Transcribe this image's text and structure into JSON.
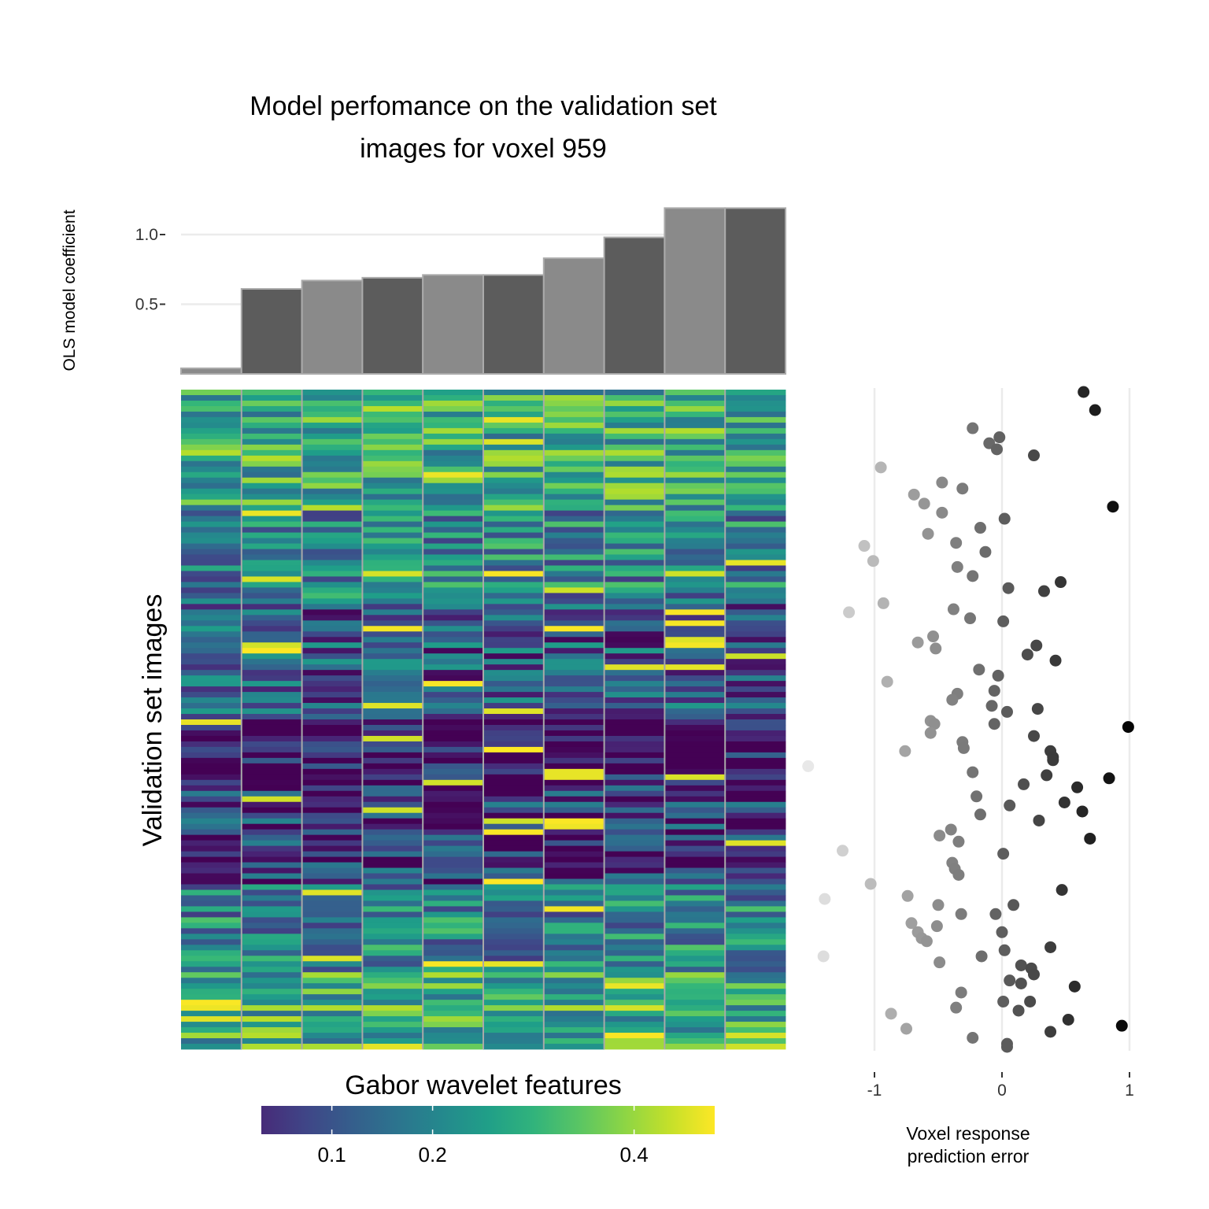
{
  "chart_data": [
    {
      "type": "bar",
      "title": "Model perfomance on the validation set images for voxel 959",
      "title_lines": [
        "Model perfomance on the validation set",
        "images for voxel 959"
      ],
      "ylabel": "OLS model coefficient",
      "xlabel": "",
      "ylim": [
        0,
        1.22
      ],
      "yticks": [
        0.5,
        1.0
      ],
      "ytick_labels": [
        "0.5",
        "1.0"
      ],
      "grid": "horizontal",
      "values": [
        0.04,
        0.61,
        0.67,
        0.69,
        0.71,
        0.71,
        0.83,
        0.98,
        1.19,
        1.19
      ],
      "bar_colors": [
        "#8a8a8a",
        "#5c5c5c",
        "#8a8a8a",
        "#5c5c5c",
        "#8a8a8a",
        "#5c5c5c",
        "#8a8a8a",
        "#5c5c5c",
        "#8a8a8a",
        "#5c5c5c"
      ]
    },
    {
      "type": "heatmap",
      "xlabel": "Gabor wavelet features",
      "ylabel": "Validation set images",
      "n_columns": 10,
      "n_rows": 120,
      "colorscale": "viridis",
      "colorbar": {
        "range": [
          0.03,
          0.48
        ],
        "ticks": [
          0.1,
          0.2,
          0.4
        ],
        "tick_labels": [
          "0.1",
          "0.2",
          "0.4"
        ]
      }
    },
    {
      "type": "scatter",
      "xlabel_lines": [
        "Voxel response",
        "prediction error"
      ],
      "xlim": [
        -1.55,
        1.05
      ],
      "xticks": [
        -1,
        0,
        1
      ],
      "xtick_labels": [
        "-1",
        "0",
        "1"
      ],
      "grid": "vertical",
      "color_scale": "light grey (negative error) to black (positive error)",
      "x": [
        0.64,
        0.73,
        -0.23,
        -0.02,
        -0.1,
        -0.04,
        0.25,
        -0.95,
        -0.47,
        -0.31,
        -0.69,
        -0.61,
        0.87,
        -0.47,
        0.02,
        -0.17,
        -0.58,
        -0.36,
        -1.08,
        -0.13,
        -1.01,
        -0.35,
        -0.23,
        0.46,
        0.05,
        0.33,
        -0.93,
        -0.38,
        -1.2,
        -0.25,
        0.01,
        -0.54,
        -0.66,
        0.27,
        -0.52,
        0.2,
        0.42,
        -0.18,
        -0.03,
        -0.9,
        -0.06,
        -0.35,
        -0.39,
        -0.08,
        0.28,
        0.04,
        -0.56,
        -0.53,
        -0.06,
        0.99,
        -0.56,
        0.25,
        -0.31,
        -0.3,
        -0.76,
        0.38,
        0.4,
        0.4,
        -1.52,
        -0.23,
        0.35,
        0.84,
        0.17,
        0.59,
        -0.2,
        0.49,
        0.06,
        0.63,
        -0.17,
        0.29,
        -0.4,
        -0.49,
        0.69,
        -0.34,
        -1.25,
        0.01,
        -0.39,
        -0.37,
        -0.34,
        -1.03,
        0.47,
        -0.74,
        -1.39,
        -0.5,
        0.09,
        -0.32,
        -0.05,
        -0.71,
        -0.51,
        0.0,
        -0.66,
        -0.63,
        -0.59,
        0.38,
        0.02,
        -1.4,
        -0.16,
        -0.49,
        0.15,
        0.23,
        0.25,
        0.06,
        0.15,
        0.57,
        -0.32,
        0.01,
        0.22,
        -0.36,
        0.13,
        -0.87,
        0.52,
        0.94,
        -0.75,
        0.38,
        -0.23,
        0.04,
        0.04
      ],
      "y": [
        0.0,
        0.6,
        1.2,
        1.5,
        1.7,
        1.9,
        2.1,
        2.5,
        3.0,
        3.2,
        3.4,
        3.7,
        3.8,
        4.0,
        4.2,
        4.5,
        4.7,
        5.0,
        5.1,
        5.3,
        5.6,
        5.8,
        6.1,
        6.3,
        6.5,
        6.6,
        7.0,
        7.2,
        7.3,
        7.5,
        7.6,
        8.1,
        8.3,
        8.4,
        8.5,
        8.7,
        8.9,
        9.2,
        9.4,
        9.6,
        9.9,
        10.0,
        10.2,
        10.4,
        10.5,
        10.6,
        10.9,
        11.0,
        11.0,
        11.1,
        11.3,
        11.4,
        11.6,
        11.8,
        11.9,
        11.9,
        12.1,
        12.2,
        12.4,
        12.6,
        12.7,
        12.8,
        13.0,
        13.1,
        13.4,
        13.6,
        13.7,
        13.9,
        14.0,
        14.2,
        14.5,
        14.7,
        14.8,
        14.9,
        15.2,
        15.3,
        15.6,
        15.8,
        16.0,
        16.3,
        16.5,
        16.7,
        16.8,
        17.0,
        17.0,
        17.3,
        17.3,
        17.6,
        17.7,
        17.9,
        17.9,
        18.1,
        18.2,
        18.4,
        18.5,
        18.7,
        18.7,
        18.9,
        19.0,
        19.1,
        19.3,
        19.5,
        19.6,
        19.7,
        19.9,
        20.2,
        20.2,
        20.4,
        20.5,
        20.6,
        20.8,
        21.0,
        21.1,
        21.2,
        21.4,
        21.6,
        21.7
      ]
    }
  ]
}
